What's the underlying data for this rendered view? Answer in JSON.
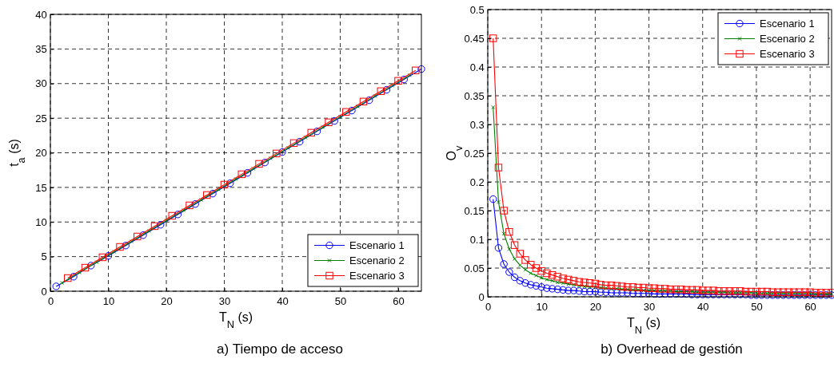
{
  "chart_data": [
    {
      "type": "line",
      "title": "a) Tiempo de acceso",
      "xlabel": "T$_{N}$ (s)",
      "ylabel": "t$_{a}$ (s)",
      "xlim": [
        0,
        64
      ],
      "ylim": [
        0,
        40
      ],
      "xticks": [
        0,
        10,
        20,
        30,
        40,
        50,
        60
      ],
      "yticks": [
        0,
        5,
        10,
        15,
        20,
        25,
        30,
        35,
        40
      ],
      "grid": true,
      "line_style": "solid",
      "legend": "bottom right",
      "series": [
        {
          "name": "Escenario 1",
          "color": "#0000ff",
          "marker": "circle",
          "x": [
            1,
            4,
            7,
            10,
            13,
            16,
            19,
            22,
            25,
            28,
            31,
            34,
            37,
            40,
            43,
            46,
            49,
            52,
            55,
            58,
            61,
            64
          ],
          "values": [
            0.7,
            2.1,
            3.7,
            5.1,
            6.6,
            8.1,
            9.6,
            11.1,
            12.6,
            14.1,
            15.6,
            17.1,
            18.6,
            20.1,
            21.6,
            23.1,
            24.6,
            26.1,
            27.6,
            29.1,
            30.6,
            32.1
          ]
        },
        {
          "name": "Escenario 2",
          "color": "#008000",
          "marker": "cross",
          "x": [
            2,
            5,
            8,
            11,
            14,
            17,
            20,
            23,
            26,
            29,
            32,
            35,
            38,
            41,
            44,
            47,
            50,
            53,
            56,
            59,
            62
          ],
          "values": [
            1.2,
            2.7,
            4.2,
            5.7,
            7.2,
            8.7,
            10.2,
            11.7,
            13.2,
            14.7,
            16.2,
            17.7,
            19.2,
            20.7,
            22.2,
            23.7,
            25.2,
            26.7,
            28.2,
            29.7,
            31.2
          ]
        },
        {
          "name": "Escenario 3",
          "color": "#ff0000",
          "marker": "square",
          "x": [
            3,
            6,
            9,
            12,
            15,
            18,
            21,
            24,
            27,
            30,
            33,
            36,
            39,
            42,
            45,
            48,
            51,
            54,
            57,
            60,
            63
          ],
          "values": [
            1.9,
            3.4,
            4.9,
            6.4,
            7.9,
            9.4,
            10.9,
            12.4,
            13.9,
            15.4,
            16.9,
            18.4,
            19.9,
            21.4,
            22.9,
            24.4,
            25.9,
            27.4,
            28.9,
            30.4,
            31.9
          ]
        }
      ]
    },
    {
      "type": "line",
      "title": "b) Overhead de gestión",
      "xlabel": "T$_{N}$  (s)",
      "ylabel": "O$_{v}$",
      "xlim": [
        0,
        64
      ],
      "ylim": [
        0,
        0.5
      ],
      "xticks": [
        0,
        10,
        20,
        30,
        40,
        50,
        60
      ],
      "yticks": [
        0,
        0.05,
        0.1,
        0.15,
        0.2,
        0.25,
        0.3,
        0.35,
        0.4,
        0.45,
        0.5
      ],
      "grid": true,
      "line_style": "solid",
      "legend": "top right",
      "x": [
        1,
        2,
        3,
        4,
        5,
        6,
        7,
        8,
        9,
        10,
        11,
        12,
        13,
        14,
        15,
        16,
        17,
        18,
        19,
        20,
        21,
        22,
        23,
        24,
        25,
        26,
        27,
        28,
        29,
        30,
        31,
        32,
        33,
        34,
        35,
        36,
        37,
        38,
        39,
        40,
        41,
        42,
        43,
        44,
        45,
        46,
        47,
        48,
        49,
        50,
        51,
        52,
        53,
        54,
        55,
        56,
        57,
        58,
        59,
        60,
        61,
        62,
        63,
        64
      ],
      "series": [
        {
          "name": "Escenario 1",
          "color": "#0000ff",
          "marker": "circle",
          "values": [
            0.17,
            0.085,
            0.057,
            0.043,
            0.034,
            0.028,
            0.024,
            0.021,
            0.019,
            0.017,
            0.015,
            0.014,
            0.013,
            0.012,
            0.011,
            0.011,
            0.01,
            0.009,
            0.009,
            0.009,
            0.008,
            0.008,
            0.007,
            0.007,
            0.007,
            0.007,
            0.006,
            0.006,
            0.006,
            0.006,
            0.005,
            0.005,
            0.005,
            0.005,
            0.005,
            0.005,
            0.005,
            0.004,
            0.004,
            0.004,
            0.004,
            0.004,
            0.004,
            0.004,
            0.004,
            0.004,
            0.004,
            0.004,
            0.003,
            0.003,
            0.003,
            0.003,
            0.003,
            0.003,
            0.003,
            0.003,
            0.003,
            0.003,
            0.003,
            0.003,
            0.003,
            0.003,
            0.003,
            0.003
          ]
        },
        {
          "name": "Escenario 2",
          "color": "#008000",
          "marker": "cross",
          "values": [
            0.33,
            0.165,
            0.11,
            0.083,
            0.066,
            0.055,
            0.047,
            0.041,
            0.037,
            0.033,
            0.03,
            0.028,
            0.025,
            0.024,
            0.022,
            0.021,
            0.019,
            0.018,
            0.017,
            0.017,
            0.016,
            0.015,
            0.014,
            0.014,
            0.013,
            0.013,
            0.012,
            0.012,
            0.011,
            0.011,
            0.011,
            0.01,
            0.01,
            0.01,
            0.009,
            0.009,
            0.009,
            0.009,
            0.008,
            0.008,
            0.008,
            0.008,
            0.008,
            0.008,
            0.007,
            0.007,
            0.007,
            0.007,
            0.007,
            0.007,
            0.006,
            0.006,
            0.006,
            0.006,
            0.006,
            0.006,
            0.006,
            0.006,
            0.006,
            0.006,
            0.005,
            0.005,
            0.005,
            0.005
          ]
        },
        {
          "name": "Escenario 3",
          "color": "#ff0000",
          "marker": "square",
          "values": [
            0.45,
            0.225,
            0.15,
            0.113,
            0.09,
            0.075,
            0.064,
            0.056,
            0.05,
            0.045,
            0.041,
            0.038,
            0.035,
            0.032,
            0.03,
            0.028,
            0.026,
            0.025,
            0.024,
            0.023,
            0.021,
            0.02,
            0.02,
            0.019,
            0.018,
            0.017,
            0.017,
            0.016,
            0.016,
            0.015,
            0.015,
            0.014,
            0.014,
            0.013,
            0.013,
            0.013,
            0.012,
            0.012,
            0.012,
            0.011,
            0.011,
            0.011,
            0.01,
            0.01,
            0.01,
            0.01,
            0.01,
            0.009,
            0.009,
            0.009,
            0.009,
            0.009,
            0.008,
            0.008,
            0.008,
            0.008,
            0.008,
            0.008,
            0.008,
            0.008,
            0.007,
            0.007,
            0.007,
            0.007
          ]
        }
      ]
    }
  ]
}
